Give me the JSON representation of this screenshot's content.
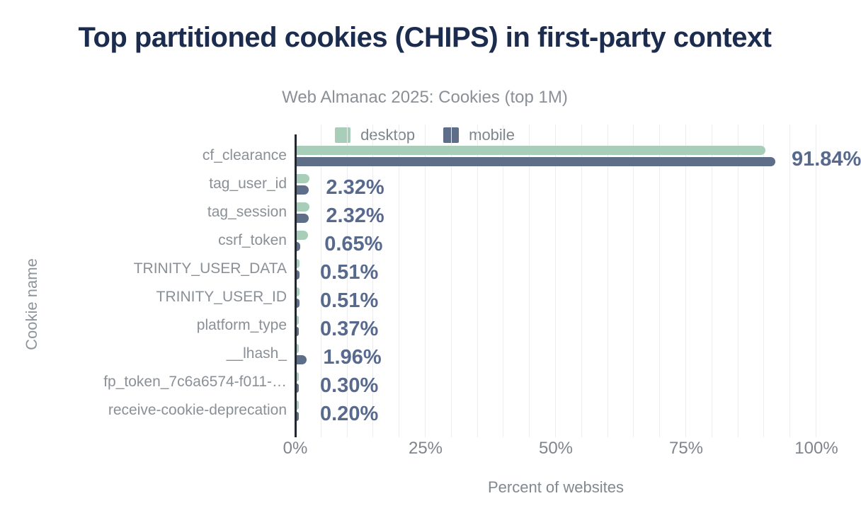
{
  "title": "Top partitioned cookies (CHIPS) in first-party context",
  "subtitle": "Web Almanac 2025: Cookies (top 1M)",
  "legend": {
    "items": [
      {
        "label": "desktop",
        "color": "#a8cdb8"
      },
      {
        "label": "mobile",
        "color": "#5f6e88"
      }
    ]
  },
  "chart_data": {
    "type": "bar",
    "orientation": "horizontal",
    "title": "Top partitioned cookies (CHIPS) in first-party context",
    "subtitle": "Web Almanac 2025: Cookies (top 1M)",
    "xlabel": "Percent of websites",
    "ylabel": "Cookie name",
    "xlim": [
      0,
      100
    ],
    "x_ticks": [
      "0%",
      "25%",
      "50%",
      "75%",
      "100%"
    ],
    "grid": {
      "minor_step_percent": 5,
      "color": "#ededf0"
    },
    "legend_position": "top",
    "categories": [
      "cf_clearance",
      "tag_user_id",
      "tag_session",
      "csrf_token",
      "TRINITY_USER_DATA",
      "TRINITY_USER_ID",
      "platform_type",
      "__lhash_",
      "fp_token_7c6a6574-f011-…",
      "receive-cookie-deprecation"
    ],
    "series": [
      {
        "name": "desktop",
        "color": "#a8cdb8",
        "values": [
          89.9,
          2.5,
          2.5,
          2.2,
          0.5,
          0.5,
          0.45,
          0.3,
          0.3,
          0.15
        ]
      },
      {
        "name": "mobile",
        "color": "#5f6e88",
        "values": [
          91.84,
          2.32,
          2.32,
          0.65,
          0.51,
          0.51,
          0.37,
          1.96,
          0.3,
          0.2
        ]
      }
    ],
    "value_labels": [
      "91.84%",
      "2.32%",
      "2.32%",
      "0.65%",
      "0.51%",
      "0.51%",
      "0.37%",
      "1.96%",
      "0.30%",
      "0.20%"
    ],
    "value_labels_show_series": "mobile"
  },
  "colors": {
    "title": "#1b2c4f",
    "subtitle": "#8a9096",
    "axis_line": "#23282e",
    "value_label": "#57698c",
    "category_label": "#8a9097",
    "tick_label": "#7f858c",
    "desktop": "#a8cdb8",
    "mobile": "#5f6e88"
  }
}
